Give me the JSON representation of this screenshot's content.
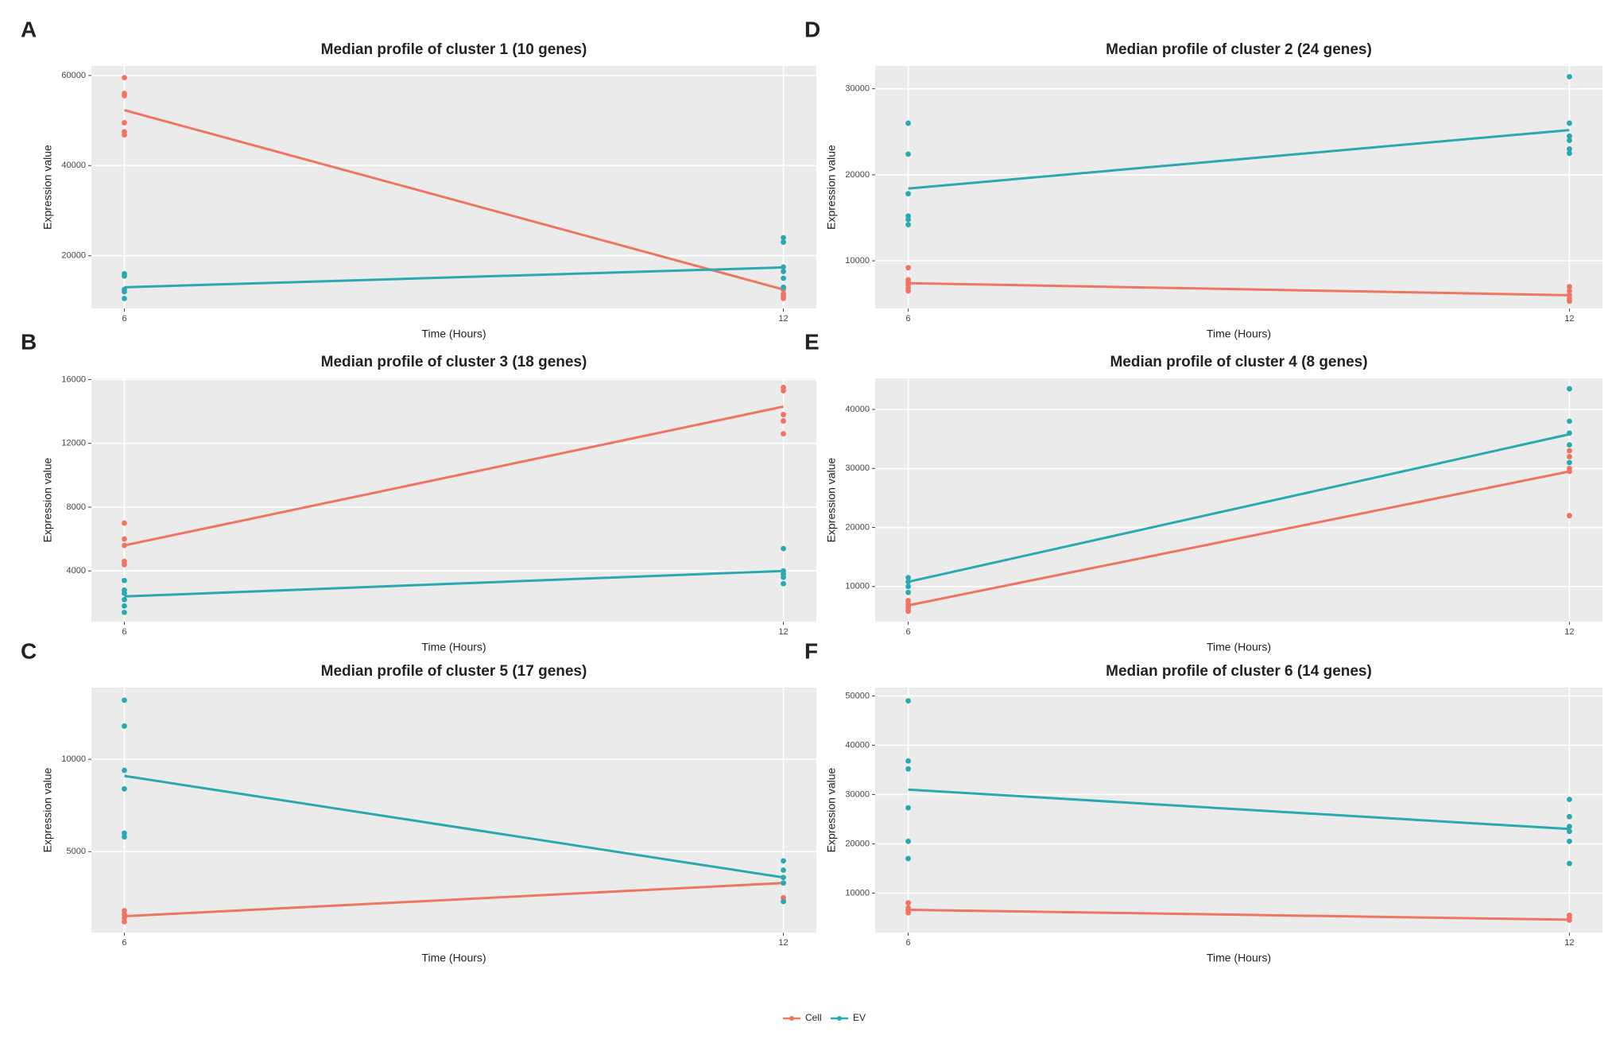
{
  "chart_data": [
    {
      "type": "line",
      "panel": "A",
      "title": "Median profile of cluster 1 (10 genes)",
      "x_label": "Time (Hours)",
      "y_label": "Expression value",
      "xlim": [
        5.7,
        12.3
      ],
      "xticks": [
        6,
        12
      ],
      "ylim": [
        8300,
        62100
      ],
      "yticks": [
        20000,
        40000,
        60000
      ],
      "grid": true,
      "series": [
        {
          "name": "Cell",
          "color": "#ef7462",
          "x": [
            6,
            12
          ],
          "values": [
            52300,
            12500
          ],
          "points_x": [
            6,
            6,
            6,
            6,
            6,
            6,
            12,
            12,
            12,
            12,
            12
          ],
          "points_y": [
            59500,
            56000,
            55500,
            49500,
            47500,
            46800,
            13000,
            12500,
            11500,
            11000,
            10500
          ]
        },
        {
          "name": "EV",
          "color": "#2aaab0",
          "x": [
            6,
            12
          ],
          "values": [
            13000,
            17400
          ],
          "points_x": [
            6,
            6,
            6,
            6,
            6,
            12,
            12,
            12,
            12,
            12,
            12
          ],
          "points_y": [
            16000,
            15500,
            12500,
            12000,
            10500,
            24000,
            23000,
            17500,
            16500,
            15000,
            13000
          ]
        }
      ]
    },
    {
      "type": "line",
      "panel": "D",
      "title": "Median profile of cluster 2 (24 genes)",
      "x_label": "Time (Hours)",
      "y_label": "Expression value",
      "xlim": [
        5.7,
        12.3
      ],
      "xticks": [
        6,
        12
      ],
      "ylim": [
        4460,
        32650
      ],
      "yticks": [
        10000,
        20000,
        30000
      ],
      "grid": true,
      "series": [
        {
          "name": "Cell",
          "color": "#ef7462",
          "x": [
            6,
            12
          ],
          "values": [
            7400,
            6000
          ],
          "points_x": [
            6,
            6,
            6,
            6,
            6,
            6,
            12,
            12,
            12,
            12,
            12
          ],
          "points_y": [
            9200,
            7800,
            7500,
            7200,
            6800,
            6500,
            7000,
            6500,
            6000,
            5600,
            5300
          ]
        },
        {
          "name": "EV",
          "color": "#2aaab0",
          "x": [
            6,
            12
          ],
          "values": [
            18400,
            25200
          ],
          "points_x": [
            6,
            6,
            6,
            6,
            6,
            6,
            12,
            12,
            12,
            12,
            12,
            12
          ],
          "points_y": [
            26000,
            22400,
            17800,
            15200,
            14800,
            14200,
            31400,
            26000,
            24500,
            24000,
            23000,
            22500
          ]
        }
      ]
    },
    {
      "type": "line",
      "panel": "B",
      "title": "Median profile of cluster 3 (18 genes)",
      "x_label": "Time (Hours)",
      "y_label": "Expression value",
      "xlim": [
        5.7,
        12.3
      ],
      "xticks": [
        6,
        12
      ],
      "ylim": [
        820,
        16070
      ],
      "yticks": [
        4000,
        8000,
        12000,
        16000
      ],
      "grid": true,
      "series": [
        {
          "name": "Cell",
          "color": "#ef7462",
          "x": [
            6,
            12
          ],
          "values": [
            5600,
            14300
          ],
          "points_x": [
            6,
            6,
            6,
            6,
            6,
            12,
            12,
            12,
            12,
            12
          ],
          "points_y": [
            7000,
            6000,
            5600,
            4600,
            4400,
            15500,
            15300,
            13800,
            13400,
            12600
          ]
        },
        {
          "name": "EV",
          "color": "#2aaab0",
          "x": [
            6,
            12
          ],
          "values": [
            2400,
            4000
          ],
          "points_x": [
            6,
            6,
            6,
            6,
            6,
            6,
            12,
            12,
            12,
            12,
            12
          ],
          "points_y": [
            3400,
            2800,
            2600,
            2200,
            1800,
            1400,
            5400,
            4000,
            3800,
            3600,
            3200
          ]
        }
      ]
    },
    {
      "type": "line",
      "panel": "E",
      "title": "Median profile of cluster 4 (8 genes)",
      "x_label": "Time (Hours)",
      "y_label": "Expression value",
      "xlim": [
        5.7,
        12.3
      ],
      "xticks": [
        6,
        12
      ],
      "ylim": [
        4040,
        45260
      ],
      "yticks": [
        10000,
        20000,
        30000,
        40000
      ],
      "grid": true,
      "series": [
        {
          "name": "Cell",
          "color": "#ef7462",
          "x": [
            6,
            12
          ],
          "values": [
            6800,
            29500
          ],
          "points_x": [
            6,
            6,
            6,
            6,
            6,
            12,
            12,
            12,
            12,
            12
          ],
          "points_y": [
            7600,
            7000,
            6500,
            6000,
            5800,
            33000,
            32000,
            30000,
            29500,
            22000
          ]
        },
        {
          "name": "EV",
          "color": "#2aaab0",
          "x": [
            6,
            12
          ],
          "values": [
            10800,
            35800
          ],
          "points_x": [
            6,
            6,
            6,
            6,
            12,
            12,
            12,
            12,
            12
          ],
          "points_y": [
            11500,
            10800,
            10000,
            9000,
            43500,
            38000,
            36000,
            34000,
            31000
          ]
        }
      ]
    },
    {
      "type": "line",
      "panel": "C",
      "title": "Median profile of cluster 5 (17 genes)",
      "x_label": "Time (Hours)",
      "y_label": "Expression value",
      "xlim": [
        5.7,
        12.3
      ],
      "xticks": [
        6,
        12
      ],
      "ylim": [
        620,
        13880
      ],
      "yticks": [
        5000,
        10000
      ],
      "grid": true,
      "series": [
        {
          "name": "Cell",
          "color": "#ef7462",
          "x": [
            6,
            12
          ],
          "values": [
            1500,
            3300
          ],
          "points_x": [
            6,
            6,
            6,
            6,
            12,
            12,
            12
          ],
          "points_y": [
            1800,
            1600,
            1400,
            1200,
            3300,
            2500,
            2300
          ]
        },
        {
          "name": "EV",
          "color": "#2aaab0",
          "x": [
            6,
            12
          ],
          "values": [
            9100,
            3600
          ],
          "points_x": [
            6,
            6,
            6,
            6,
            6,
            6,
            12,
            12,
            12,
            12,
            12
          ],
          "points_y": [
            13200,
            11800,
            9400,
            8400,
            6000,
            5800,
            4500,
            4000,
            3600,
            3300,
            2300
          ]
        }
      ]
    },
    {
      "type": "line",
      "panel": "F",
      "title": "Median profile of cluster 6 (14 genes)",
      "x_label": "Time (Hours)",
      "y_label": "Expression value",
      "xlim": [
        5.7,
        12.3
      ],
      "xticks": [
        6,
        12
      ],
      "ylim": [
        2000,
        51680
      ],
      "yticks": [
        10000,
        20000,
        30000,
        40000,
        50000
      ],
      "grid": true,
      "series": [
        {
          "name": "Cell",
          "color": "#ef7462",
          "x": [
            6,
            12
          ],
          "values": [
            6600,
            4600
          ],
          "points_x": [
            6,
            6,
            6,
            6,
            12,
            12,
            12
          ],
          "points_y": [
            8000,
            7000,
            6500,
            6000,
            5500,
            5000,
            4500
          ]
        },
        {
          "name": "EV",
          "color": "#2aaab0",
          "x": [
            6,
            12
          ],
          "values": [
            31000,
            23000
          ],
          "points_x": [
            6,
            6,
            6,
            6,
            6,
            6,
            12,
            12,
            12,
            12,
            12,
            12
          ],
          "points_y": [
            49000,
            36800,
            35200,
            27300,
            20500,
            17000,
            29000,
            25500,
            23500,
            22500,
            20500,
            16000
          ]
        }
      ]
    }
  ]
}
